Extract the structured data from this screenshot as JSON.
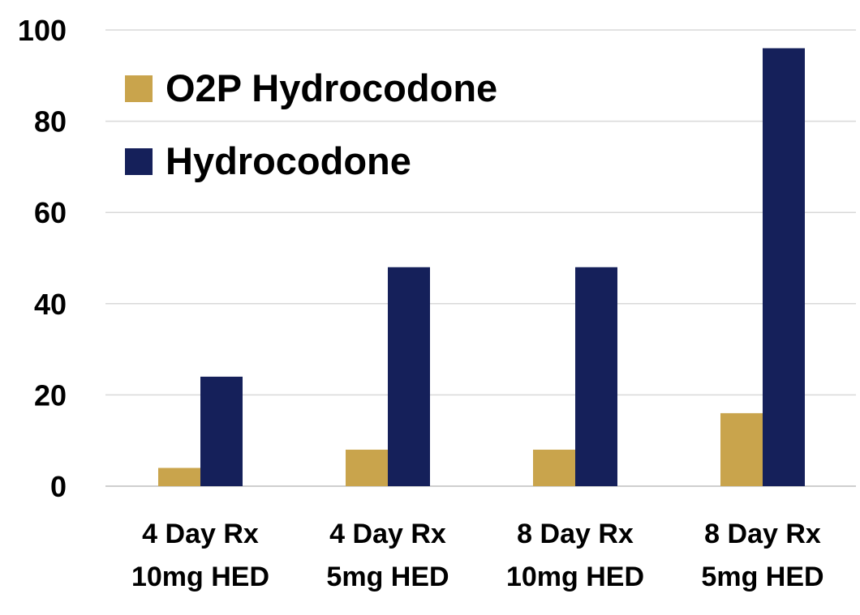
{
  "chart_data": {
    "type": "bar",
    "title": "",
    "xlabel": "",
    "ylabel": "",
    "categories": [
      [
        "4 Day Rx",
        "10mg HED"
      ],
      [
        "4 Day Rx",
        "5mg HED"
      ],
      [
        "8 Day Rx",
        "10mg HED"
      ],
      [
        "8 Day Rx",
        "5mg HED"
      ]
    ],
    "series": [
      {
        "name": "O2P Hydrocodone",
        "color": "#c9a44c",
        "values": [
          4,
          8,
          8,
          16
        ]
      },
      {
        "name": "Hydrocodone",
        "color": "#15205a",
        "values": [
          24,
          48,
          48,
          96
        ]
      }
    ],
    "ylim": [
      0,
      100
    ],
    "yticks": [
      0,
      20,
      40,
      60,
      80,
      100
    ],
    "grid": true,
    "legend_position": "top-left",
    "gridline_color": "#d9d9d9",
    "axis_color": "#cfcfcf"
  }
}
